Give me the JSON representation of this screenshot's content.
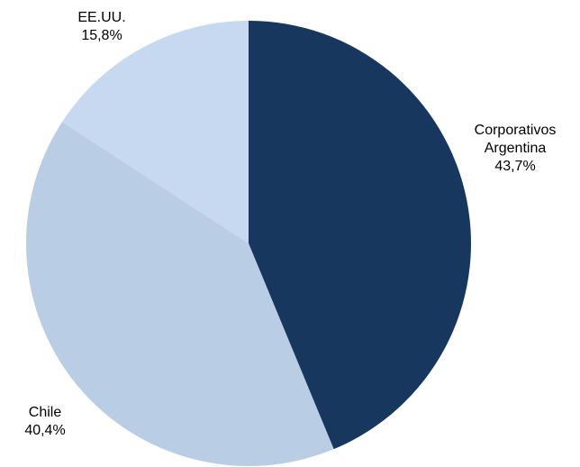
{
  "chart_data": {
    "type": "pie",
    "categories": [
      "Corporativos Argentina",
      "Chile",
      "EE.UU."
    ],
    "values": [
      43.7,
      40.4,
      15.8
    ],
    "value_labels": [
      "43,7%",
      "40,4%",
      "15,8%"
    ],
    "colors": [
      "#17375e",
      "#b9cde5",
      "#c6d9f0"
    ]
  }
}
